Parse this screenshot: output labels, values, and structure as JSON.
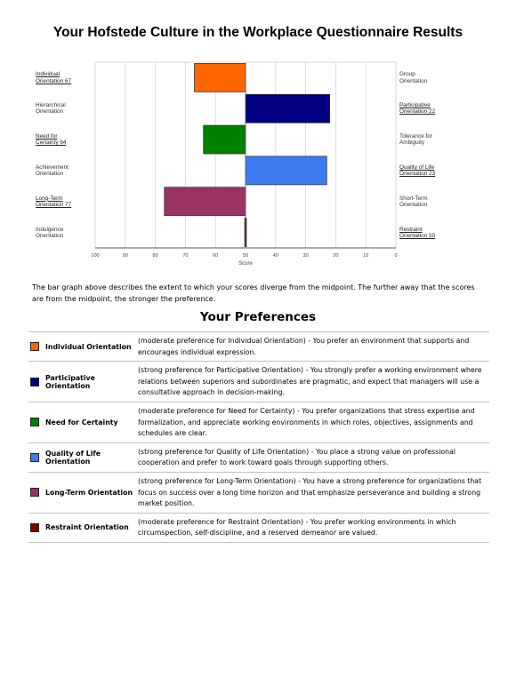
{
  "page_title": "Your Hofstede Culture in the Workplace Questionnaire Results",
  "chart_data": {
    "type": "bar",
    "orientation": "horizontal",
    "baseline": 50,
    "xlim": [
      100,
      0
    ],
    "xlabel": "Score",
    "xticks": [
      "100",
      "90",
      "80",
      "70",
      "60",
      "50",
      "40",
      "30",
      "20",
      "10",
      "0"
    ],
    "grid": true,
    "bars": [
      {
        "value": 67,
        "color": "#ff6600",
        "left_label": [
          "Individual",
          "Orientation 67"
        ],
        "right_label": [
          "Group",
          "Orientation"
        ],
        "highlight": "left"
      },
      {
        "value": 22,
        "color": "#000080",
        "left_label": [
          "Hierarchical",
          "Orientation"
        ],
        "right_label": [
          "Participative",
          "Orientation 22"
        ],
        "highlight": "right"
      },
      {
        "value": 64,
        "color": "#008000",
        "left_label": [
          "Need for",
          "Certainty 64"
        ],
        "right_label": [
          "Tolerance for",
          "Ambiguity"
        ],
        "highlight": "left"
      },
      {
        "value": 23,
        "color": "#3d7cf0",
        "left_label": [
          "Achievement",
          "Orientation"
        ],
        "right_label": [
          "Quality of Life",
          "Orientation 23"
        ],
        "highlight": "right"
      },
      {
        "value": 77,
        "color": "#993366",
        "left_label": [
          "Long-Term",
          "Orientation 77"
        ],
        "right_label": [
          "Short-Term",
          "Orientation"
        ],
        "highlight": "left"
      },
      {
        "value": 50,
        "color": "#800000",
        "left_label": [
          "Indulgence",
          "Orientation"
        ],
        "right_label": [
          "Restraint",
          "Orientation 50"
        ],
        "highlight": "right"
      }
    ]
  },
  "description": "The bar graph above describes the extent to which your scores diverge from the midpoint. The further away that the scores are from the midpoint, the stronger the preference.",
  "preferences_title": "Your Preferences",
  "preferences": [
    {
      "name": "Individual Orientation",
      "color": "#ff6600",
      "text": "(moderate preference for Individual Orientation) - You prefer an environment that supports and encourages individual expression."
    },
    {
      "name": "Participative Orientation",
      "color": "#000080",
      "text": "(strong preference for Participative Orientation) - You strongly prefer a working environment where relations between superiors and subordinates are pragmatic, and expect that managers will use a consultative approach in decision-making."
    },
    {
      "name": "Need for Certainty",
      "color": "#008000",
      "text": "(moderate preference for Need for Certainty) - You prefer organizations that stress expertise and formalization, and appreciate working environments in which roles, objectives, assignments and schedules are clear."
    },
    {
      "name": "Quality of Life Orientation",
      "color": "#3d7cf0",
      "text": "(strong preference for Quality of Life Orientation) - You place a strong value on professional cooperation and prefer to work toward goals through supporting others."
    },
    {
      "name": "Long-Term Orientation",
      "color": "#993366",
      "text": "(strong preference for Long-Term Orientation) - You have a strong preference for organizations that focus on success over a long time horizon and that emphasize perseverance and building a strong market position."
    },
    {
      "name": "Restraint Orientation",
      "color": "#800000",
      "text": "(moderate preference for Restraint Orientation) - You prefer working environments in which circumspection, self-discipline, and a reserved demeanor are valued."
    }
  ]
}
